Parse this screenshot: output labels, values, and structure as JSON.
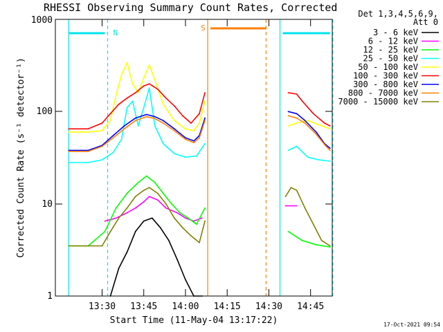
{
  "chart_data": {
    "type": "line",
    "title": "RHESSI Observing Summary Count Rates, Corrected",
    "xlabel": "Start Time (11-May-04 13:17:22)",
    "ylabel": "Corrected Count Rate (s⁻¹ detector⁻¹)",
    "yscale": "log",
    "ylim": [
      1,
      1000
    ],
    "y_ticks": [
      "1",
      "10",
      "100",
      "1000"
    ],
    "x_range_minutes": [
      13.22,
      14.88
    ],
    "x_ticks": [
      "13:30",
      "13:45",
      "14:00",
      "14:15",
      "14:30",
      "14:45"
    ],
    "legend_header": [
      "Det 1,3,4,5,6,9,",
      "Att 0"
    ],
    "legend_placement": "right",
    "grid": false,
    "annotations": [
      {
        "label": "N",
        "color": "#00e5ee"
      },
      {
        "label": "S",
        "color": "#ff7f00"
      }
    ],
    "footer": "17-Oct-2021 09:54",
    "series": [
      {
        "name": "3 - 6 keV",
        "color": "#000000",
        "x": [
          "13:33",
          "13:36",
          "13:39",
          "13:42",
          "13:45",
          "13:48",
          "13:51",
          "13:54",
          "13:57",
          "14:00",
          "14:03",
          "14:06"
        ],
        "y": [
          1,
          2,
          3,
          5,
          6.5,
          7,
          5.5,
          4,
          2.5,
          1.5,
          1,
          1
        ]
      },
      {
        "name": "6 - 12 keV",
        "color": "#ff00ff",
        "x": [
          "13:31",
          "13:35",
          "13:39",
          "13:42",
          "13:45",
          "13:47",
          "13:50",
          "13:53",
          "13:57",
          "14:00",
          "14:03",
          "14:06",
          "14:36",
          "14:40"
        ],
        "y": [
          6.5,
          7,
          8,
          9,
          10.5,
          12,
          11,
          9,
          8,
          7,
          6.5,
          7,
          9.5,
          9.5
        ]
      },
      {
        "name": "12 - 25 keV",
        "color": "#00ff00",
        "x": [
          "13:18",
          "13:25",
          "13:31",
          "13:35",
          "13:39",
          "13:43",
          "13:46",
          "13:49",
          "13:52",
          "13:55",
          "13:58",
          "14:01",
          "14:04",
          "14:07",
          "14:37",
          "14:42",
          "14:47",
          "14:52"
        ],
        "y": [
          3.5,
          3.5,
          5,
          9,
          13,
          17,
          20,
          17,
          13,
          10,
          8,
          7,
          6,
          9,
          5,
          4,
          3.6,
          3.4
        ]
      },
      {
        "name": "25 - 50 keV",
        "color": "#00ffff",
        "x": [
          "13:18",
          "13:25",
          "13:30",
          "13:34",
          "13:37",
          "13:39",
          "13:41",
          "13:43",
          "13:45",
          "13:47",
          "13:49",
          "13:52",
          "13:56",
          "14:00",
          "14:04",
          "14:07",
          "14:37",
          "14:40",
          "14:44",
          "14:48",
          "14:52"
        ],
        "y": [
          28,
          28,
          30,
          36,
          50,
          110,
          130,
          70,
          110,
          180,
          70,
          45,
          35,
          32,
          33,
          45,
          38,
          42,
          32,
          30,
          29
        ]
      },
      {
        "name": "50 - 100 keV",
        "color": "#ffff00",
        "x": [
          "13:18",
          "13:25",
          "13:30",
          "13:33",
          "13:35",
          "13:37",
          "13:39",
          "13:41",
          "13:43",
          "13:45",
          "13:47",
          "13:49",
          "13:52",
          "13:56",
          "14:00",
          "14:03",
          "14:05",
          "14:07",
          "14:37",
          "14:40",
          "14:44",
          "14:48",
          "14:52"
        ],
        "y": [
          60,
          60,
          62,
          80,
          150,
          250,
          340,
          200,
          160,
          230,
          320,
          220,
          120,
          80,
          65,
          62,
          75,
          130,
          70,
          75,
          80,
          72,
          65
        ]
      },
      {
        "name": "100 - 300 keV",
        "color": "#ff0000",
        "x": [
          "13:18",
          "13:25",
          "13:30",
          "13:33",
          "13:36",
          "13:39",
          "13:42",
          "13:45",
          "13:47",
          "13:50",
          "13:53",
          "13:56",
          "13:59",
          "14:02",
          "14:05",
          "14:07",
          "14:37",
          "14:40",
          "14:42",
          "14:46",
          "14:50",
          "14:52"
        ],
        "y": [
          65,
          65,
          75,
          95,
          120,
          140,
          160,
          190,
          200,
          175,
          140,
          115,
          90,
          75,
          95,
          160,
          160,
          155,
          130,
          95,
          75,
          70
        ]
      },
      {
        "name": "300 - 800 keV",
        "color": "#0000ff",
        "x": [
          "13:18",
          "13:25",
          "13:30",
          "13:34",
          "13:38",
          "13:42",
          "13:46",
          "13:49",
          "13:52",
          "13:56",
          "14:00",
          "14:03",
          "14:05",
          "14:07",
          "14:37",
          "14:40",
          "14:43",
          "14:47",
          "14:50",
          "14:52"
        ],
        "y": [
          38,
          38,
          43,
          55,
          70,
          85,
          93,
          88,
          80,
          65,
          52,
          48,
          55,
          85,
          100,
          95,
          80,
          60,
          45,
          40
        ]
      },
      {
        "name": "800 - 7000 keV",
        "color": "#ff7f00",
        "x": [
          "13:18",
          "13:25",
          "13:30",
          "13:34",
          "13:38",
          "13:42",
          "13:46",
          "13:49",
          "13:52",
          "13:56",
          "14:00",
          "14:03",
          "14:05",
          "14:07",
          "14:37",
          "14:40",
          "14:43",
          "14:47",
          "14:50",
          "14:52"
        ],
        "y": [
          37,
          37,
          42,
          52,
          65,
          80,
          88,
          84,
          75,
          62,
          50,
          46,
          52,
          80,
          90,
          85,
          75,
          57,
          44,
          38
        ]
      },
      {
        "name": "7000 - 15000 keV",
        "color": "#808000",
        "x": [
          "13:18",
          "13:25",
          "13:30",
          "13:33",
          "13:36",
          "13:39",
          "13:42",
          "13:45",
          "13:47",
          "13:50",
          "13:53",
          "13:56",
          "13:59",
          "14:02",
          "14:05",
          "14:07",
          "14:36",
          "14:38",
          "14:40",
          "14:43",
          "14:46",
          "14:49",
          "14:52"
        ],
        "y": [
          3.5,
          3.5,
          3.5,
          5,
          7,
          9,
          12,
          14,
          15,
          13,
          10,
          7,
          5.5,
          4.5,
          3.8,
          6.5,
          12,
          15,
          14,
          9,
          6,
          4,
          3.5
        ]
      }
    ]
  }
}
